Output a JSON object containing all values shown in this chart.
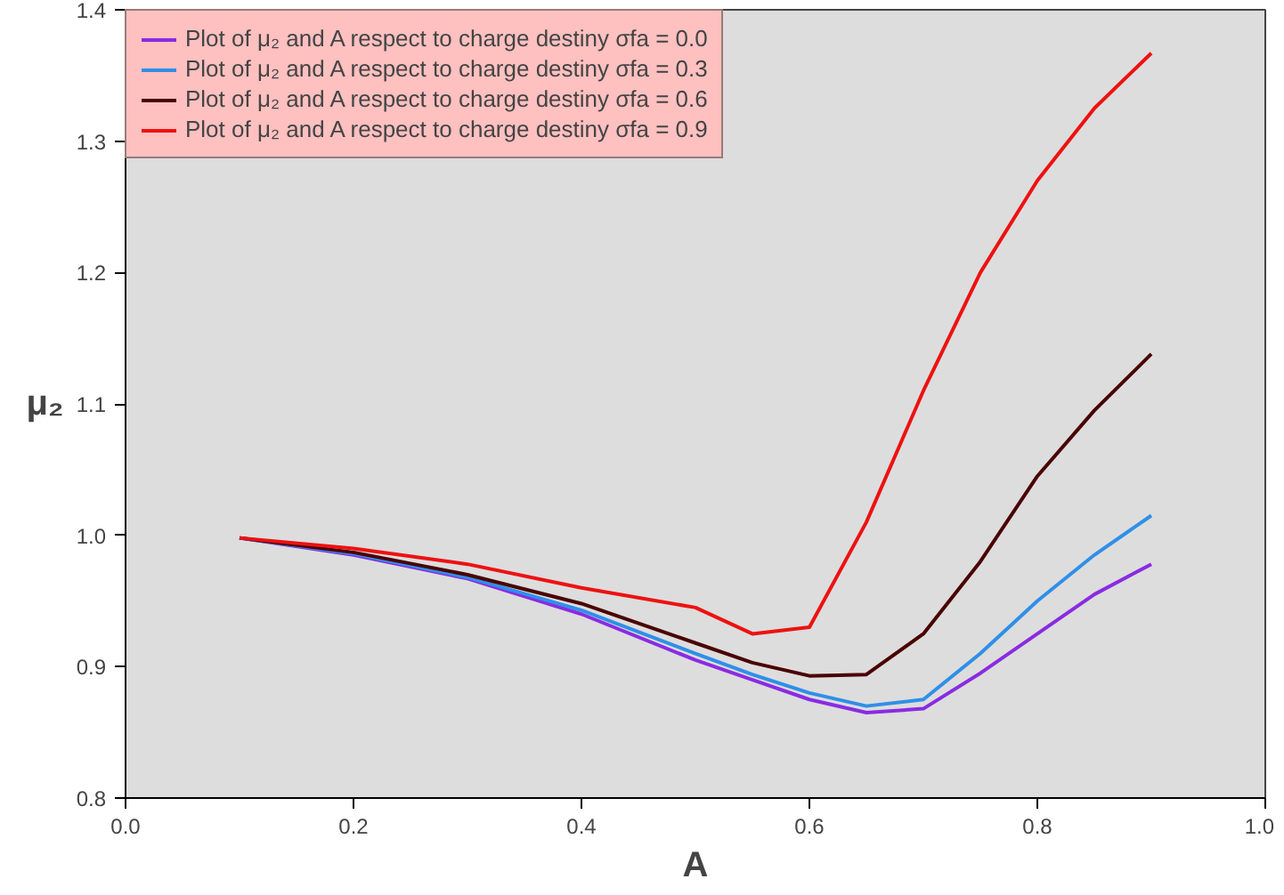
{
  "chart_data": {
    "type": "line",
    "xlabel": "A",
    "ylabel": "μ₂",
    "xlim": [
      0.0,
      1.0
    ],
    "ylim": [
      0.8,
      1.4
    ],
    "xticks": [
      {
        "value": 0.0,
        "label": "0.0"
      },
      0.2,
      0.4,
      0.6,
      0.8,
      {
        "value": 1.0,
        "label": "1.0"
      }
    ],
    "yticks": [
      0.8,
      0.9,
      {
        "value": 1.0,
        "label": "1.0"
      },
      1.1,
      1.2,
      1.3,
      1.4
    ],
    "grid": false,
    "legend": "top left",
    "marker": "none",
    "line_style": "solid",
    "x": [
      0.1,
      0.2,
      0.3,
      0.4,
      0.5,
      0.55,
      0.6,
      0.65,
      0.7,
      0.75,
      0.8,
      0.85,
      0.9
    ],
    "series": [
      {
        "name": "Plot of μ₂ and A respect to charge destiny σfa = 0.0",
        "color": "#8a2be2",
        "values": [
          0.998,
          0.985,
          0.967,
          0.94,
          0.905,
          0.89,
          0.875,
          0.865,
          0.868,
          0.895,
          0.925,
          0.955,
          0.978
        ]
      },
      {
        "name": "Plot of μ₂ and A respect to charge destiny σfa = 0.3",
        "color": "#2f8fe8",
        "values": [
          0.998,
          0.986,
          0.968,
          0.943,
          0.91,
          0.894,
          0.88,
          0.87,
          0.875,
          0.91,
          0.95,
          0.985,
          1.015
        ]
      },
      {
        "name": "Plot of μ₂ and A respect to charge destiny σfa = 0.6",
        "color": "#4a0000",
        "values": [
          0.998,
          0.987,
          0.97,
          0.948,
          0.918,
          0.903,
          0.893,
          0.894,
          0.925,
          0.98,
          1.045,
          1.095,
          1.138
        ]
      },
      {
        "name": "Plot of μ₂ and A respect to charge destiny σfa = 0.9",
        "color": "#ee1111",
        "values": [
          0.998,
          0.99,
          0.978,
          0.96,
          0.945,
          0.925,
          0.93,
          1.01,
          1.11,
          1.2,
          1.27,
          1.325,
          1.367
        ]
      }
    ]
  }
}
